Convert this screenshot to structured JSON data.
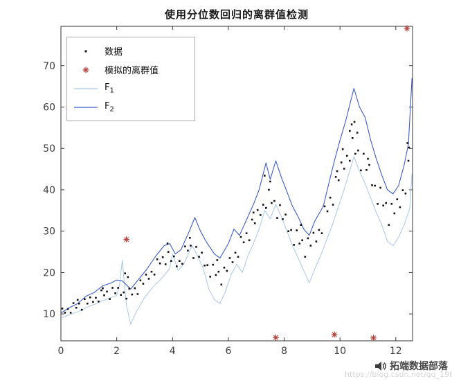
{
  "watermark": {
    "icon": "megaphone-icon",
    "brand": "拓端数据部落",
    "url": "https://blog.csdn.net/qq_19600291"
  },
  "chart_data": {
    "type": "scatter",
    "title": "使用分位数回归的离群值检测",
    "xlabel": "",
    "ylabel": "",
    "xlim": [
      0,
      12.6
    ],
    "ylim": [
      3.5,
      79.5
    ],
    "xticks": [
      0,
      2,
      4,
      6,
      8,
      10,
      12
    ],
    "yticks": [
      10,
      20,
      30,
      40,
      50,
      60,
      70
    ],
    "grid": false,
    "axis_color": "#333333",
    "tick_label_color": "#3d3d3d",
    "legend": {
      "position": "top-left",
      "entries": [
        {
          "label": "数据",
          "sub": "",
          "marker": "dot",
          "color": "#111111"
        },
        {
          "label": "模拟的离群值",
          "sub": "",
          "marker": "asterisk",
          "color": "#b5413c"
        },
        {
          "label": "F",
          "sub": "1",
          "marker": "line",
          "color": "#a9c7e7"
        },
        {
          "label": "F",
          "sub": "2",
          "marker": "line",
          "color": "#3b5cc9"
        }
      ]
    },
    "series": [
      {
        "name": "F1",
        "type": "line",
        "marker": "none",
        "color": "#a9c7e7",
        "width": 1,
        "points": [
          [
            0,
            9.0
          ],
          [
            0.3,
            9.8
          ],
          [
            0.6,
            10.5
          ],
          [
            0.9,
            11.5
          ],
          [
            1.2,
            12.3
          ],
          [
            1.5,
            13.2
          ],
          [
            1.8,
            14.0
          ],
          [
            2.0,
            14.5
          ],
          [
            2.1,
            17.0
          ],
          [
            2.2,
            23.0
          ],
          [
            2.35,
            12.0
          ],
          [
            2.5,
            7.5
          ],
          [
            2.7,
            10.5
          ],
          [
            3.0,
            14.0
          ],
          [
            3.3,
            16.5
          ],
          [
            3.6,
            18.5
          ],
          [
            3.9,
            21.0
          ],
          [
            4.0,
            24.5
          ],
          [
            4.2,
            20.5
          ],
          [
            4.4,
            22.0
          ],
          [
            4.7,
            26.5
          ],
          [
            4.9,
            24.0
          ],
          [
            5.1,
            21.0
          ],
          [
            5.3,
            16.0
          ],
          [
            5.5,
            13.5
          ],
          [
            5.7,
            12.5
          ],
          [
            5.9,
            15.5
          ],
          [
            6.1,
            19.5
          ],
          [
            6.3,
            22.0
          ],
          [
            6.5,
            20.0
          ],
          [
            6.7,
            24.0
          ],
          [
            6.9,
            27.0
          ],
          [
            7.1,
            30.5
          ],
          [
            7.3,
            35.0
          ],
          [
            7.5,
            33.0
          ],
          [
            7.7,
            36.5
          ],
          [
            7.9,
            33.5
          ],
          [
            8.1,
            30.0
          ],
          [
            8.3,
            26.5
          ],
          [
            8.5,
            23.5
          ],
          [
            8.7,
            20.5
          ],
          [
            8.9,
            17.5
          ],
          [
            9.1,
            21.0
          ],
          [
            9.3,
            24.0
          ],
          [
            9.5,
            27.5
          ],
          [
            9.7,
            31.0
          ],
          [
            9.9,
            35.0
          ],
          [
            10.1,
            39.0
          ],
          [
            10.3,
            43.5
          ],
          [
            10.5,
            48.0
          ],
          [
            10.7,
            44.5
          ],
          [
            10.9,
            41.5
          ],
          [
            11.1,
            38.0
          ],
          [
            11.3,
            34.5
          ],
          [
            11.5,
            31.5
          ],
          [
            11.7,
            27.5
          ],
          [
            11.9,
            26.5
          ],
          [
            12.1,
            28.5
          ],
          [
            12.3,
            31.5
          ],
          [
            12.5,
            35.5
          ],
          [
            12.58,
            44.0
          ]
        ]
      },
      {
        "name": "F2",
        "type": "line",
        "marker": "none",
        "color": "#3b5cc9",
        "width": 1.1,
        "points": [
          [
            0,
            10.2
          ],
          [
            0.3,
            11.5
          ],
          [
            0.6,
            12.5
          ],
          [
            0.9,
            14.3
          ],
          [
            1.2,
            15.2
          ],
          [
            1.5,
            16.8
          ],
          [
            1.8,
            17.5
          ],
          [
            2.0,
            18.2
          ],
          [
            2.2,
            18.0
          ],
          [
            2.5,
            16.0
          ],
          [
            2.8,
            18.5
          ],
          [
            3.1,
            21.0
          ],
          [
            3.4,
            24.0
          ],
          [
            3.7,
            26.5
          ],
          [
            3.9,
            27.0
          ],
          [
            4.1,
            24.5
          ],
          [
            4.3,
            25.5
          ],
          [
            4.6,
            30.0
          ],
          [
            4.8,
            33.3
          ],
          [
            5.0,
            30.0
          ],
          [
            5.2,
            27.5
          ],
          [
            5.5,
            24.5
          ],
          [
            5.7,
            23.5
          ],
          [
            6.0,
            27.0
          ],
          [
            6.2,
            30.5
          ],
          [
            6.4,
            29.0
          ],
          [
            6.6,
            32.0
          ],
          [
            6.9,
            36.5
          ],
          [
            7.1,
            40.0
          ],
          [
            7.35,
            46.5
          ],
          [
            7.5,
            42.5
          ],
          [
            7.7,
            47.0
          ],
          [
            7.9,
            43.0
          ],
          [
            8.1,
            39.5
          ],
          [
            8.3,
            36.0
          ],
          [
            8.5,
            33.5
          ],
          [
            8.7,
            30.5
          ],
          [
            8.9,
            29.0
          ],
          [
            9.1,
            32.5
          ],
          [
            9.4,
            36.0
          ],
          [
            9.6,
            41.5
          ],
          [
            9.8,
            47.0
          ],
          [
            10.0,
            52.0
          ],
          [
            10.2,
            56.5
          ],
          [
            10.5,
            64.5
          ],
          [
            10.7,
            60.0
          ],
          [
            10.9,
            57.5
          ],
          [
            11.1,
            52.0
          ],
          [
            11.3,
            47.5
          ],
          [
            11.5,
            43.5
          ],
          [
            11.7,
            40.0
          ],
          [
            11.9,
            39.0
          ],
          [
            12.1,
            41.0
          ],
          [
            12.3,
            46.0
          ],
          [
            12.45,
            51.0
          ],
          [
            12.58,
            67.0
          ]
        ]
      },
      {
        "name": "数据",
        "type": "scatter",
        "marker": "dot",
        "color": "#111111",
        "points": [
          [
            0.05,
            11.3
          ],
          [
            0.15,
            10.3
          ],
          [
            0.25,
            11.2
          ],
          [
            0.35,
            10.3
          ],
          [
            0.45,
            12.6
          ],
          [
            0.55,
            11.5
          ],
          [
            0.65,
            12.5
          ],
          [
            0.75,
            11.0
          ],
          [
            0.85,
            13.6
          ],
          [
            0.95,
            12.5
          ],
          [
            1.05,
            14.0
          ],
          [
            1.15,
            12.9
          ],
          [
            1.25,
            13.9
          ],
          [
            1.35,
            13.0
          ],
          [
            1.45,
            15.7
          ],
          [
            1.55,
            14.5
          ],
          [
            1.65,
            15.4
          ],
          [
            1.75,
            13.6
          ],
          [
            1.85,
            16.3
          ],
          [
            1.95,
            15.0
          ],
          [
            2.05,
            16.3
          ],
          [
            2.15,
            14.6
          ],
          [
            2.25,
            15.2
          ],
          [
            2.35,
            13.7
          ],
          [
            2.45,
            16.1
          ],
          [
            2.55,
            14.7
          ],
          [
            2.65,
            16.2
          ],
          [
            2.75,
            14.8
          ],
          [
            2.85,
            18.1
          ],
          [
            2.95,
            17.3
          ],
          [
            3.05,
            19.5
          ],
          [
            3.15,
            18.5
          ],
          [
            3.25,
            20.2
          ],
          [
            3.35,
            19.5
          ],
          [
            3.45,
            23.2
          ],
          [
            3.55,
            22.2
          ],
          [
            3.65,
            23.7
          ],
          [
            3.75,
            22.0
          ],
          [
            3.85,
            25.0
          ],
          [
            3.95,
            22.8
          ],
          [
            4.05,
            23.9
          ],
          [
            4.15,
            21.5
          ],
          [
            4.25,
            22.8
          ],
          [
            4.35,
            22.1
          ],
          [
            4.45,
            26.3
          ],
          [
            4.55,
            25.3
          ],
          [
            4.65,
            26.5
          ],
          [
            4.75,
            23.5
          ],
          [
            4.85,
            26.2
          ],
          [
            4.95,
            23.8
          ],
          [
            5.05,
            24.8
          ],
          [
            5.15,
            21.7
          ],
          [
            5.25,
            21.8
          ],
          [
            5.35,
            19.0
          ],
          [
            5.45,
            21.9
          ],
          [
            5.55,
            19.4
          ],
          [
            5.65,
            20.2
          ],
          [
            5.75,
            17.1
          ],
          [
            5.85,
            21.2
          ],
          [
            5.95,
            20.4
          ],
          [
            6.05,
            23.5
          ],
          [
            6.15,
            22.5
          ],
          [
            6.25,
            24.8
          ],
          [
            6.35,
            23.8
          ],
          [
            6.45,
            28.6
          ],
          [
            6.55,
            27.3
          ],
          [
            6.65,
            29.5
          ],
          [
            6.75,
            27.8
          ],
          [
            6.85,
            32.8
          ],
          [
            6.95,
            31.9
          ],
          [
            7.05,
            35.1
          ],
          [
            7.15,
            33.9
          ],
          [
            7.25,
            36.4
          ],
          [
            7.35,
            35.6
          ],
          [
            7.45,
            40.0
          ],
          [
            7.55,
            36.8
          ],
          [
            7.65,
            37.3
          ],
          [
            7.75,
            33.2
          ],
          [
            7.85,
            36.3
          ],
          [
            7.95,
            32.9
          ],
          [
            8.05,
            34.0
          ],
          [
            8.15,
            30.0
          ],
          [
            8.25,
            30.3
          ],
          [
            8.35,
            26.7
          ],
          [
            8.45,
            30.2
          ],
          [
            8.55,
            27.0
          ],
          [
            8.65,
            27.8
          ],
          [
            8.75,
            23.8
          ],
          [
            8.85,
            28.3
          ],
          [
            8.95,
            26.5
          ],
          [
            9.05,
            29.6
          ],
          [
            9.15,
            27.5
          ],
          [
            9.25,
            30.3
          ],
          [
            9.35,
            29.5
          ],
          [
            9.45,
            36.0
          ],
          [
            9.55,
            34.8
          ],
          [
            9.65,
            38.1
          ],
          [
            9.75,
            36.4
          ],
          [
            9.85,
            43.1
          ],
          [
            9.95,
            42.3
          ],
          [
            10.05,
            46.6
          ],
          [
            10.15,
            45.1
          ],
          [
            10.25,
            48.2
          ],
          [
            10.35,
            47.0
          ],
          [
            10.45,
            52.5
          ],
          [
            10.55,
            48.7
          ],
          [
            10.65,
            49.5
          ],
          [
            10.75,
            44.7
          ],
          [
            10.85,
            48.7
          ],
          [
            10.95,
            44.8
          ],
          [
            11.05,
            46.0
          ],
          [
            11.15,
            41.1
          ],
          [
            11.25,
            41.0
          ],
          [
            11.35,
            36.6
          ],
          [
            11.45,
            40.5
          ],
          [
            11.55,
            36.2
          ],
          [
            11.65,
            36.8
          ],
          [
            11.75,
            31.5
          ],
          [
            11.85,
            36.6
          ],
          [
            11.95,
            34.3
          ],
          [
            12.05,
            37.7
          ],
          [
            12.15,
            35.8
          ],
          [
            12.25,
            39.9
          ],
          [
            12.35,
            39.1
          ],
          [
            12.45,
            47.0
          ],
          [
            10.42,
            55.8
          ],
          [
            10.52,
            56.4
          ],
          [
            10.62,
            53.8
          ],
          [
            10.35,
            54.2
          ],
          [
            7.3,
            43.4
          ],
          [
            7.5,
            42.0
          ],
          [
            12.42,
            51.3
          ],
          [
            12.47,
            50.2
          ],
          [
            4.62,
            28.4
          ],
          [
            3.82,
            27.0
          ],
          [
            6.9,
            34.5
          ],
          [
            9.9,
            44.5
          ],
          [
            10.1,
            49.8
          ],
          [
            11.0,
            47.5
          ],
          [
            2.3,
            19.8
          ],
          [
            2.4,
            18.9
          ],
          [
            0.6,
            13.4
          ],
          [
            1.5,
            16.2
          ],
          [
            5.6,
            23.0
          ],
          [
            8.6,
            31.5
          ]
        ]
      },
      {
        "name": "模拟的离群值",
        "type": "scatter",
        "marker": "asterisk",
        "color": "#b5413c",
        "points": [
          [
            2.35,
            28.0
          ],
          [
            7.7,
            4.3
          ],
          [
            9.8,
            5.0
          ],
          [
            11.2,
            4.2
          ],
          [
            12.4,
            79.0
          ]
        ]
      }
    ]
  }
}
